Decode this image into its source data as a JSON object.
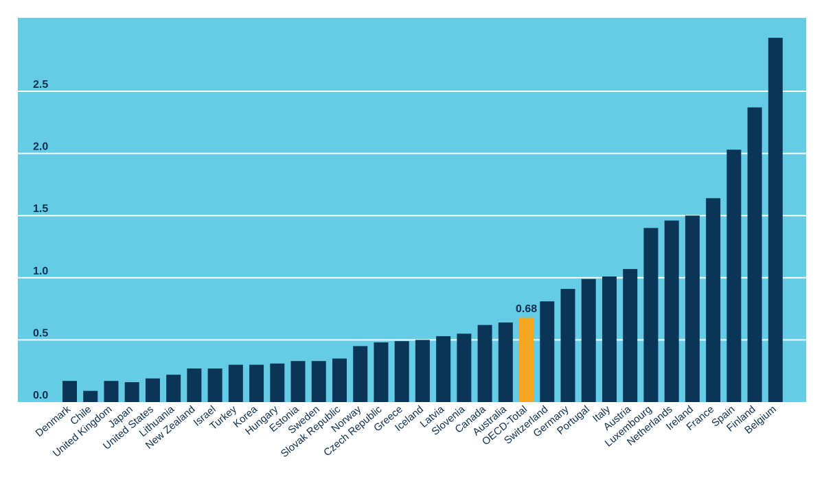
{
  "chart_data": {
    "type": "bar",
    "title": "",
    "xlabel": "",
    "ylabel": "",
    "ylim": [
      0,
      3.0
    ],
    "yticks": [
      0.0,
      0.5,
      1.0,
      1.5,
      2.0,
      2.5
    ],
    "ytick_labels": [
      "0.0",
      "0.5",
      "1.0",
      "1.5",
      "2.0",
      "2.5"
    ],
    "grid": true,
    "categories": [
      "Denmark",
      "Chile",
      "United Kingdom",
      "Japan",
      "United States",
      "Lithuania",
      "New Zealand",
      "Israel",
      "Turkey",
      "Korea",
      "Hungary",
      "Estonia",
      "Sweden",
      "Slovak Republic",
      "Norway",
      "Czech Republic",
      "Greece",
      "Iceland",
      "Latvia",
      "Slovenia",
      "Canada",
      "Australia",
      "OECD-Total",
      "Switzerland",
      "Germany",
      "Portugal",
      "Italy",
      "Austria",
      "Luxembourg",
      "Netherlands",
      "Ireland",
      "France",
      "Spain",
      "Finland",
      "Belgium"
    ],
    "values": [
      0.17,
      0.09,
      0.17,
      0.16,
      0.19,
      0.22,
      0.27,
      0.27,
      0.3,
      0.3,
      0.31,
      0.33,
      0.33,
      0.35,
      0.45,
      0.48,
      0.49,
      0.5,
      0.53,
      0.55,
      0.62,
      0.64,
      0.68,
      0.81,
      0.91,
      0.99,
      1.01,
      1.07,
      1.4,
      1.46,
      1.5,
      1.64,
      2.03,
      2.37,
      2.93
    ],
    "highlight": {
      "category": "OECD-Total",
      "label": "0.68"
    },
    "colors": {
      "background": "#66cbe5",
      "bar": "#0a3556",
      "highlight_bar": "#f5a623",
      "grid": "#ffffff",
      "text": "#0d2f4f"
    }
  }
}
